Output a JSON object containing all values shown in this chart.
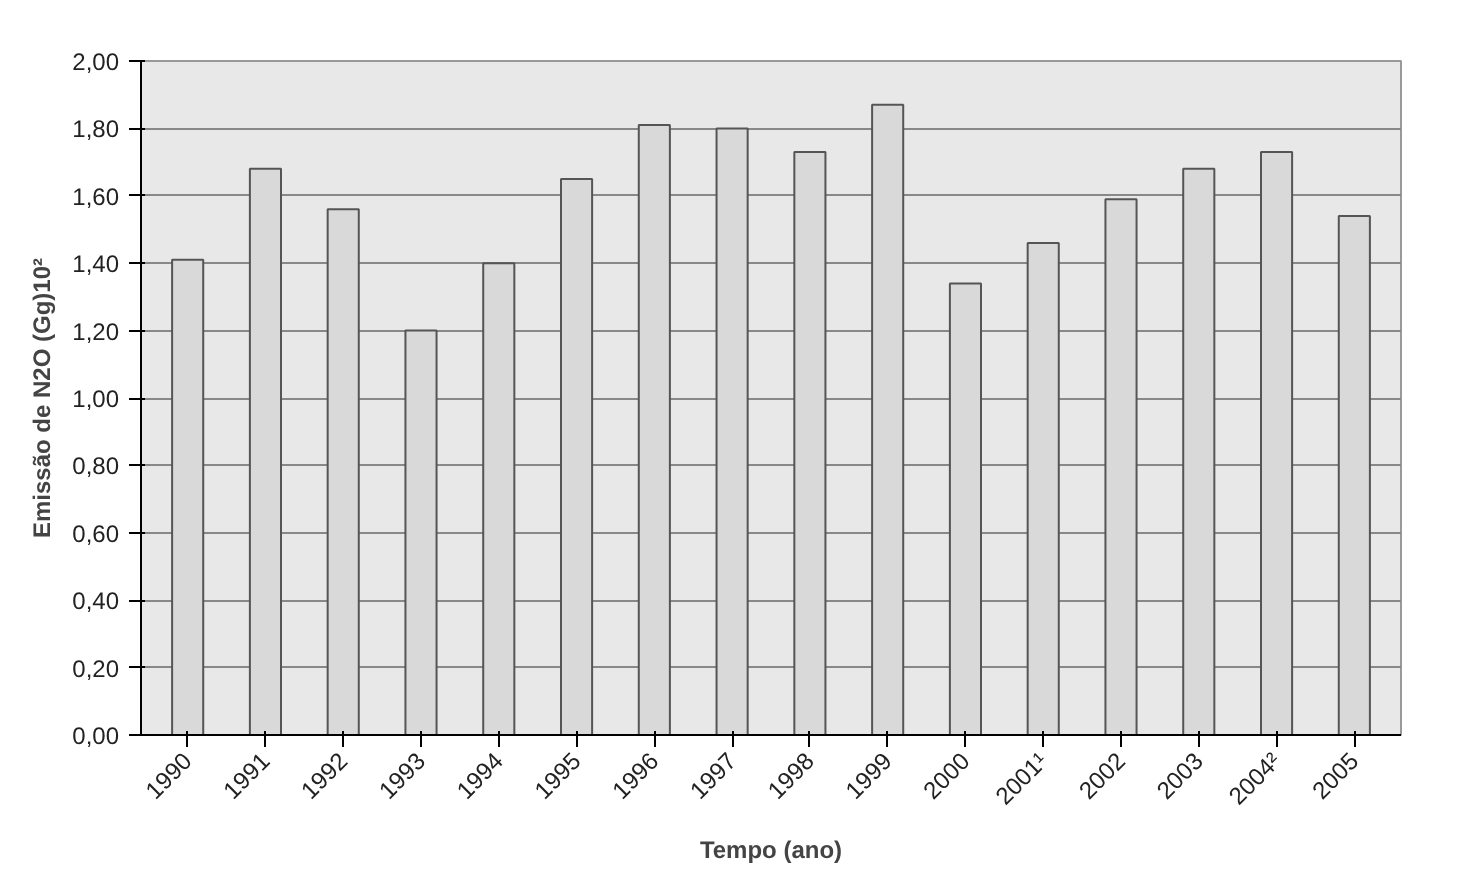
{
  "chart_data": {
    "type": "bar",
    "xlabel": "Tempo (ano)",
    "ylabel": "Emissão de N2O (Gg)10²",
    "categories": [
      "1990",
      "1991",
      "1992",
      "1993",
      "1994",
      "1995",
      "1996",
      "1997",
      "1998",
      "1999",
      "2000",
      "2001¹",
      "2002",
      "2003",
      "2004²",
      "2005"
    ],
    "values": [
      1.41,
      1.68,
      1.56,
      1.2,
      1.4,
      1.65,
      1.81,
      1.8,
      1.73,
      1.87,
      1.34,
      1.46,
      1.59,
      1.68,
      1.73,
      1.54
    ],
    "color": "#d9d9d9",
    "ylim": [
      0,
      2
    ],
    "yticks": [
      {
        "value": 0,
        "label": "0,00"
      },
      {
        "value": 0.2,
        "label": "0,20"
      },
      {
        "value": 0.4,
        "label": "0,40"
      },
      {
        "value": 0.6,
        "label": "0,60"
      },
      {
        "value": 0.8,
        "label": "0,80"
      },
      {
        "value": 1.0,
        "label": "1,00"
      },
      {
        "value": 1.2,
        "label": "1,20"
      },
      {
        "value": 1.4,
        "label": "1,40"
      },
      {
        "value": 1.6,
        "label": "1,60"
      },
      {
        "value": 1.8,
        "label": "1,80"
      },
      {
        "value": 2.0,
        "label": "2,00"
      }
    ],
    "grid": "y"
  }
}
